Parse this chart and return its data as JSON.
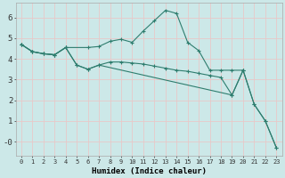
{
  "xlabel": "Humidex (Indice chaleur)",
  "bg_color": "#cce8e8",
  "grid_color": "#e8c8c8",
  "line_color": "#2e7d6e",
  "xlim": [
    -0.5,
    23.5
  ],
  "ylim": [
    -0.7,
    6.7
  ],
  "xticks": [
    0,
    1,
    2,
    3,
    4,
    5,
    6,
    7,
    8,
    9,
    10,
    11,
    12,
    13,
    14,
    15,
    16,
    17,
    18,
    19,
    20,
    21,
    22,
    23
  ],
  "yticks": [
    0,
    1,
    2,
    3,
    4,
    5,
    6
  ],
  "ytick_labels": [
    "-0",
    "1",
    "2",
    "3",
    "4",
    "5",
    "6"
  ],
  "line1_x": [
    0,
    1,
    2,
    3,
    4,
    6,
    7,
    8,
    9,
    10,
    11,
    12,
    13,
    14,
    15,
    16,
    17,
    18,
    19,
    20
  ],
  "line1_y": [
    4.7,
    4.35,
    4.25,
    4.2,
    4.55,
    4.55,
    4.6,
    4.85,
    4.95,
    4.8,
    5.35,
    5.85,
    6.35,
    6.2,
    4.8,
    4.4,
    3.45,
    3.45,
    3.45,
    3.45
  ],
  "line2_x": [
    0,
    1,
    2,
    3,
    4,
    5,
    6,
    7,
    19,
    20,
    21,
    22,
    23
  ],
  "line2_y": [
    4.7,
    4.35,
    4.25,
    4.2,
    4.55,
    3.7,
    3.5,
    3.7,
    2.25,
    3.45,
    1.8,
    1.0,
    -0.3
  ],
  "line3_x": [
    0,
    1,
    2,
    3,
    4,
    5,
    6,
    7,
    8,
    9,
    10,
    11,
    12,
    13,
    14,
    15,
    16,
    17,
    18,
    19,
    20,
    21,
    22,
    23
  ],
  "line3_y": [
    4.7,
    4.35,
    4.25,
    4.2,
    4.55,
    3.7,
    3.5,
    3.7,
    3.85,
    3.85,
    3.8,
    3.75,
    3.65,
    3.55,
    3.45,
    3.4,
    3.3,
    3.2,
    3.1,
    2.25,
    3.45,
    1.8,
    1.0,
    -0.3
  ]
}
